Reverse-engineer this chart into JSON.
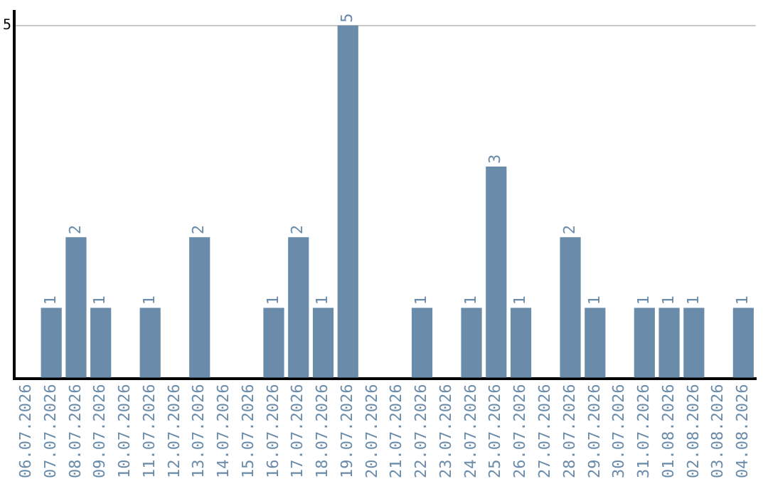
{
  "chart_data": {
    "type": "bar",
    "categories": [
      "06.07.2026",
      "07.07.2026",
      "08.07.2026",
      "09.07.2026",
      "10.07.2026",
      "11.07.2026",
      "12.07.2026",
      "13.07.2026",
      "14.07.2026",
      "15.07.2026",
      "16.07.2026",
      "17.07.2026",
      "18.07.2026",
      "19.07.2026",
      "20.07.2026",
      "21.07.2026",
      "22.07.2026",
      "23.07.2026",
      "24.07.2026",
      "25.07.2026",
      "26.07.2026",
      "27.07.2026",
      "28.07.2026",
      "29.07.2026",
      "30.07.2026",
      "31.07.2026",
      "01.08.2026",
      "02.08.2026",
      "03.08.2026",
      "04.08.2026"
    ],
    "values": [
      0,
      1,
      2,
      1,
      0,
      1,
      0,
      2,
      0,
      0,
      1,
      2,
      1,
      5,
      0,
      0,
      1,
      0,
      1,
      3,
      1,
      0,
      2,
      1,
      0,
      1,
      1,
      1,
      0,
      1
    ],
    "value_labels": [
      null,
      "1",
      "2",
      "1",
      null,
      "1",
      null,
      "2",
      null,
      null,
      "1",
      "2",
      "1",
      "5",
      null,
      null,
      "1",
      null,
      "1",
      "3",
      "1",
      null,
      "2",
      "1",
      null,
      "1",
      "1",
      "1",
      null,
      "1"
    ],
    "color": "#6a8caa",
    "ylim": [
      0,
      5.2
    ],
    "yticks": [
      {
        "value": 0,
        "label": null
      },
      5
    ],
    "grid": "y",
    "legend": false
  }
}
